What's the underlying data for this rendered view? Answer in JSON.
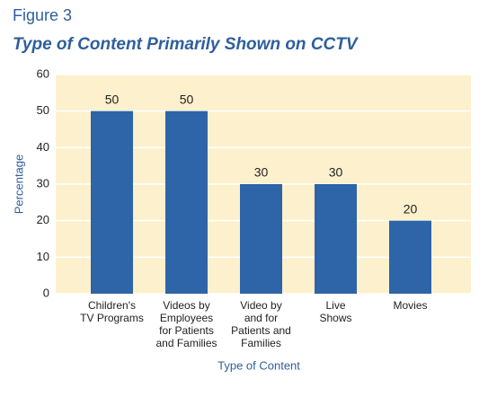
{
  "figure_label": "Figure 3",
  "chart_data": {
    "type": "bar",
    "title": "Type of Content Primarily Shown on CCTV",
    "x_label": "Type of Content",
    "y_label": "Percentage",
    "categories": [
      "Children's\nTV Programs",
      "Videos by\nEmployees\nfor Patients\nand Families",
      "Video by\nand for\nPatients and\nFamilies",
      "Live\nShows",
      "Movies"
    ],
    "values": [
      50,
      50,
      30,
      30,
      20
    ],
    "color": "#2e64a8",
    "ylim": [
      0,
      60
    ],
    "yticks": [
      0,
      10,
      20,
      30,
      40,
      50,
      60
    ],
    "grid": true,
    "background": "#fdf0cc"
  }
}
